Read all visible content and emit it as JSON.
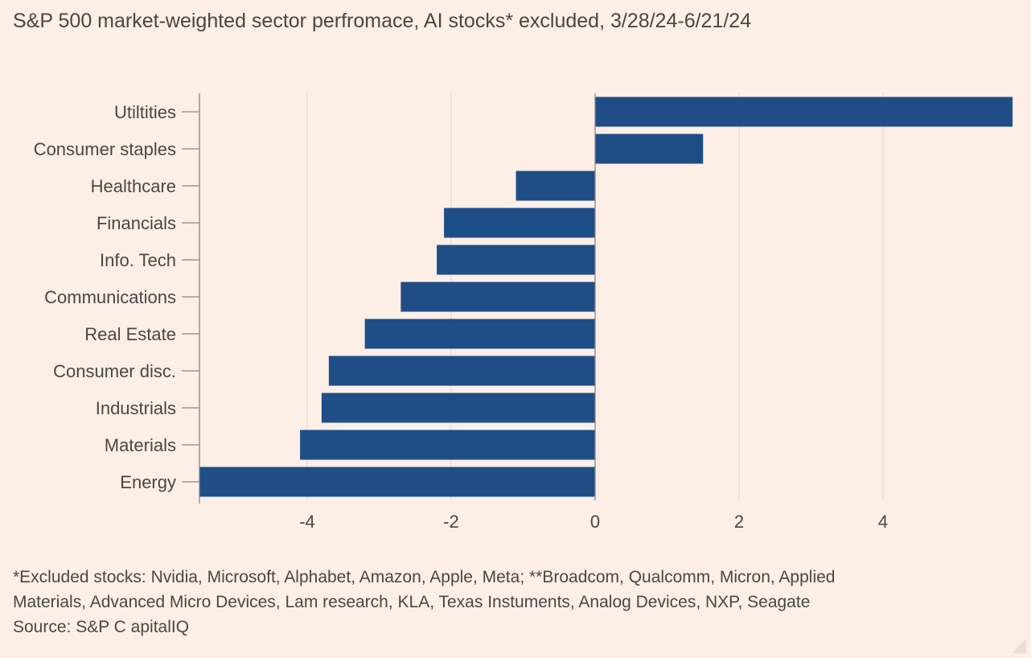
{
  "title": "S&P 500 market-weighted sector perfromace, AI stocks* excluded, 3/28/24-6/21/24",
  "notes": {
    "line1": "*Excluded stocks: Nvidia, Microsoft, Alphabet, Amazon, Apple, Meta; **Broadcom, Qualcomm, Micron, Applied",
    "line2": "Materials, Advanced Micro Devices, Lam research, KLA, Texas Instuments, Analog Devices, NXP, Seagate",
    "source": "Source: S&P C apitalIQ"
  },
  "colors": {
    "bar": "#1f4e87",
    "grid": "#e3d7cf",
    "axis": "#8c8580",
    "background": "#fdefe6"
  },
  "chart_data": {
    "type": "bar",
    "orientation": "horizontal",
    "categories": [
      "Utiltities",
      "Consumer staples",
      "Healthcare",
      "Financials",
      "Info. Tech",
      "Communications",
      "Real Estate",
      "Consumer disc.",
      "Industrials",
      "Materials",
      "Energy"
    ],
    "values": [
      5.8,
      1.5,
      -1.1,
      -2.1,
      -2.2,
      -2.7,
      -3.2,
      -3.7,
      -3.8,
      -4.1,
      -5.5
    ],
    "xlim": [
      -5.5,
      5.8
    ],
    "xticks": [
      -4,
      -2,
      0,
      2,
      4
    ],
    "xtick_labels": [
      "-4",
      "-2",
      "0",
      "2",
      "4"
    ],
    "grid": true,
    "xlabel": "",
    "ylabel": ""
  }
}
